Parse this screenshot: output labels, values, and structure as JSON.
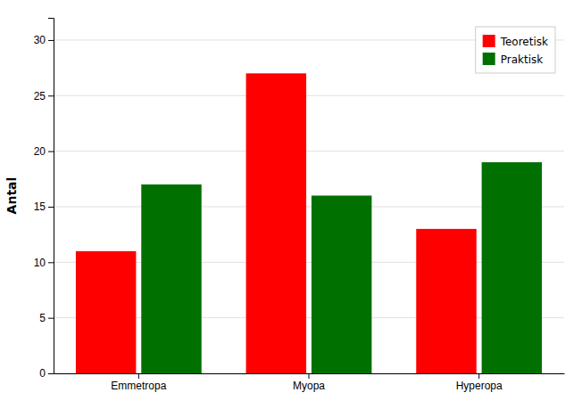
{
  "chart_data": {
    "type": "bar",
    "categories": [
      "Emmetropa",
      "Myopa",
      "Hyperopa"
    ],
    "series": [
      {
        "name": "Teoretisk",
        "color": "#ff0000",
        "values": [
          11,
          27,
          13
        ]
      },
      {
        "name": "Praktisk",
        "color": "#007000",
        "values": [
          17,
          16,
          19
        ]
      }
    ],
    "y_label": "Antal",
    "ylim": [
      0,
      32
    ],
    "yticks": [
      0,
      5,
      10,
      15,
      20,
      25,
      30
    ],
    "grid": true,
    "legend": "upper right"
  }
}
